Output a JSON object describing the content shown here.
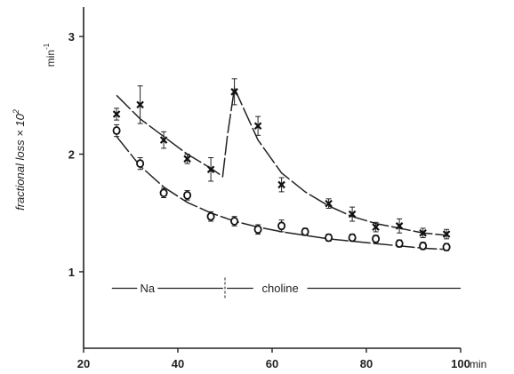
{
  "chart_data": {
    "type": "scatter",
    "title": "",
    "xlabel": "min",
    "ylabel": "fractional loss × 10² min⁻¹",
    "ylabel_main": "fractional  loss  × 10",
    "ylabel_exp": "2",
    "yunit_main": "min",
    "yunit_exp": "-1",
    "xlim": [
      20,
      100
    ],
    "ylim": [
      0.35,
      3.25
    ],
    "xticks": [
      20,
      40,
      60,
      80,
      100
    ],
    "xtick_labels": [
      "20",
      "40",
      "60",
      "80",
      "100"
    ],
    "yticks": [
      1,
      2,
      3
    ],
    "ytick_labels": [
      "1",
      "2",
      "3"
    ],
    "grid": false,
    "series": [
      {
        "marker": "cross",
        "x": [
          27,
          32,
          37,
          42,
          47,
          52,
          57,
          62,
          72,
          77,
          82,
          87,
          92,
          97
        ],
        "y": [
          2.34,
          2.42,
          2.12,
          1.96,
          1.87,
          2.53,
          2.24,
          1.74,
          1.58,
          1.49,
          1.38,
          1.39,
          1.33,
          1.32
        ],
        "err": [
          0.05,
          0.16,
          0.07,
          0.04,
          0.1,
          0.11,
          0.08,
          0.06,
          0.04,
          0.06,
          0.04,
          0.06,
          0.04,
          0.04
        ],
        "fit_x": [
          27,
          32,
          37,
          42,
          47,
          49.5,
          50.5,
          52,
          57,
          62,
          67,
          72,
          77,
          82,
          87,
          92,
          97
        ],
        "fit_y": [
          2.5,
          2.3,
          2.15,
          2.0,
          1.88,
          1.81,
          2.15,
          2.56,
          2.12,
          1.84,
          1.68,
          1.56,
          1.47,
          1.41,
          1.37,
          1.33,
          1.31
        ]
      },
      {
        "marker": "circle",
        "x": [
          27,
          32,
          37,
          42,
          47,
          52,
          57,
          62,
          67,
          72,
          77,
          82,
          87,
          92,
          97
        ],
        "y": [
          2.2,
          1.92,
          1.67,
          1.65,
          1.47,
          1.43,
          1.36,
          1.39,
          1.34,
          1.29,
          1.29,
          1.28,
          1.24,
          1.22,
          1.21
        ],
        "err": [
          0.05,
          0.05,
          0.04,
          0.04,
          0.04,
          0.04,
          0.04,
          0.05,
          0.03,
          0.03,
          0.03,
          0.03,
          0.03,
          0.03,
          0.03
        ],
        "fit_x": [
          27,
          32,
          37,
          42,
          47,
          52,
          57,
          62,
          67,
          72,
          77,
          82,
          87,
          92,
          97
        ],
        "fit_y": [
          2.15,
          1.9,
          1.72,
          1.59,
          1.5,
          1.43,
          1.38,
          1.34,
          1.31,
          1.28,
          1.26,
          1.24,
          1.22,
          1.2,
          1.19
        ]
      }
    ],
    "annotations": [
      {
        "text": "Na",
        "x_start": 26,
        "x_end": 49.6,
        "y": 0.86
      },
      {
        "text": "choline",
        "x_start": 50.4,
        "x_end": 100,
        "y": 0.86
      }
    ],
    "divider_x": 50
  }
}
